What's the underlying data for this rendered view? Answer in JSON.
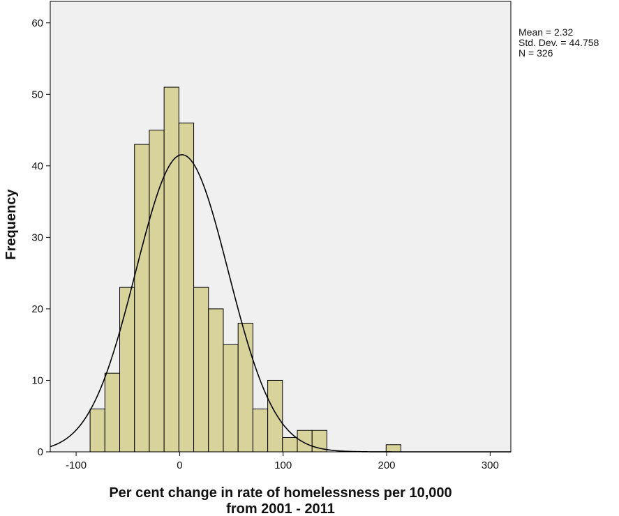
{
  "chart_data": {
    "type": "bar",
    "subtype": "histogram",
    "xlabel_lines": [
      "Per cent change in rate of homelessness per 10,000",
      "from 2001 - 2011"
    ],
    "ylabel": "Frequency",
    "xlim": [
      -125,
      320
    ],
    "ylim": [
      0,
      63
    ],
    "x_ticks": [
      -100,
      0,
      100,
      200,
      300
    ],
    "x_tick_labels": [
      "-100",
      "0",
      "100",
      "200",
      "300"
    ],
    "y_ticks": [
      0,
      10,
      20,
      30,
      40,
      50,
      60
    ],
    "y_tick_labels": [
      "0",
      "10",
      "20",
      "30",
      "40",
      "50",
      "60"
    ],
    "bin_width": 14.3,
    "bins": [
      {
        "start": -86.5,
        "value": 6
      },
      {
        "start": -72.2,
        "value": 11
      },
      {
        "start": -57.9,
        "value": 23
      },
      {
        "start": -43.6,
        "value": 43
      },
      {
        "start": -29.3,
        "value": 45
      },
      {
        "start": -15.0,
        "value": 51
      },
      {
        "start": -0.7,
        "value": 46
      },
      {
        "start": 13.6,
        "value": 23
      },
      {
        "start": 27.9,
        "value": 20
      },
      {
        "start": 42.2,
        "value": 15
      },
      {
        "start": 56.5,
        "value": 18
      },
      {
        "start": 70.8,
        "value": 6
      },
      {
        "start": 85.1,
        "value": 10
      },
      {
        "start": 99.4,
        "value": 2
      },
      {
        "start": 113.7,
        "value": 3
      },
      {
        "start": 128.0,
        "value": 3
      },
      {
        "start": 199.5,
        "value": 1
      }
    ],
    "normal_curve": {
      "mean": 2.32,
      "sd": 44.758,
      "n": 326
    },
    "stats_text": [
      "Mean = 2.32",
      "Std. Dev. = 44.758",
      "N = 326"
    ],
    "colors": {
      "bar_fill": "#d8d29b",
      "bar_stroke": "#000000",
      "plot_bg": "#f0f0f0",
      "curve": "#000000"
    },
    "grid": false,
    "stats_placement": "top-right"
  }
}
